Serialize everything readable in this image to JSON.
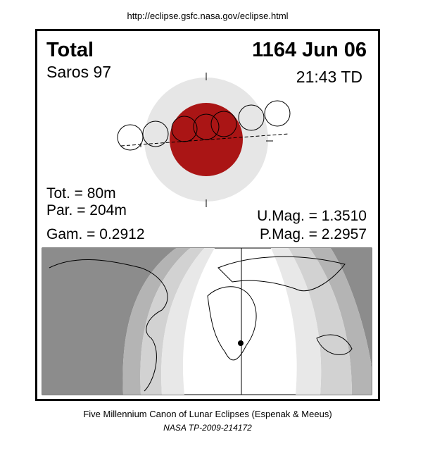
{
  "header": {
    "url": "http://eclipse.gsfc.nasa.gov/eclipse.html"
  },
  "eclipse": {
    "type": "Total",
    "date": "1164 Jun 06",
    "saros": "Saros  97",
    "time": "21:43 TD",
    "tot": "Tot. =  80m",
    "par": "Par. = 204m",
    "gam": "Gam. = 0.2912",
    "umag": "U.Mag. = 1.3510",
    "pmag": "P.Mag. = 2.2957"
  },
  "footer": {
    "line1": "Five Millennium Canon of Lunar Eclipses (Espenak & Meeus)",
    "line2": "NASA TP-2009-214172"
  }
}
